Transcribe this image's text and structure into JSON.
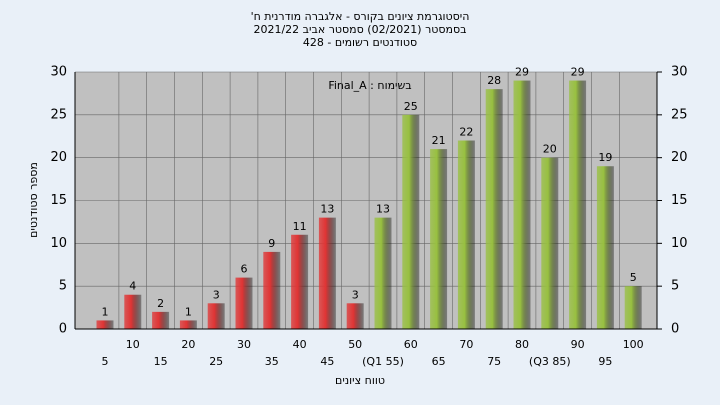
{
  "chart_data": {
    "type": "bar",
    "title": [
      "היסטוגרמת ציונים בקורס - אלגברה מודרנית ח'",
      "בסמסטר  (02/2021)  סמסטר אביב 2021/22",
      "סטודנטים רשומים - 428"
    ],
    "annotation": "Final_A : בשימוח",
    "x_label": "טווח ציונים",
    "y_label": "מספר סטודנטים",
    "categories": [
      "5",
      "10",
      "15",
      "20",
      "25",
      "30",
      "35",
      "40",
      "45",
      "50",
      "(Q1 55)",
      "60",
      "65",
      "70",
      "75",
      "80",
      "(Q3 85)",
      "90",
      "95",
      "100"
    ],
    "values": [
      1,
      4,
      2,
      1,
      3,
      6,
      9,
      11,
      13,
      3,
      13,
      25,
      21,
      22,
      28,
      29,
      20,
      29,
      19,
      5
    ],
    "colors": [
      "#e03434",
      "#e03434",
      "#e03434",
      "#e03434",
      "#e03434",
      "#e03434",
      "#e03434",
      "#e03434",
      "#e03434",
      "#e03434",
      "#98c040",
      "#98c040",
      "#98c040",
      "#98c040",
      "#98c040",
      "#98c040",
      "#98c040",
      "#98c040",
      "#98c040",
      "#98c040"
    ],
    "ylim": [
      0,
      30
    ],
    "yticks": [
      0,
      5,
      10,
      15,
      20,
      25,
      30
    ],
    "y2lim": [
      0,
      30
    ],
    "y2ticks": [
      0,
      5,
      10,
      15,
      20,
      25,
      30
    ],
    "grid": true
  }
}
